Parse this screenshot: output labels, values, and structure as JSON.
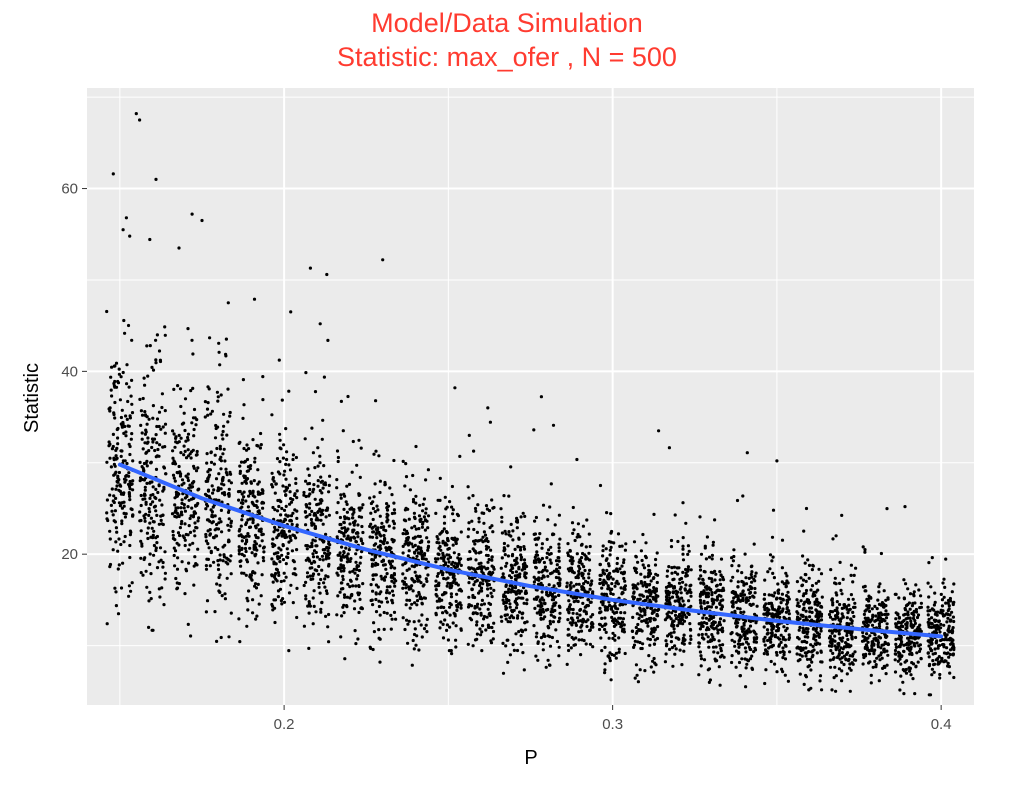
{
  "title_line1": "Model/Data Simulation",
  "title_line2": "Statistic: max_ofer , N = 500",
  "chart_data": {
    "type": "scatter",
    "xlabel": "P",
    "ylabel": "Statistic",
    "xlim": [
      0.14,
      0.41
    ],
    "ylim": [
      3.5,
      71
    ],
    "x_ticks": [
      0.2,
      0.3,
      0.4
    ],
    "x_tick_labels": [
      "0.2",
      "0.3",
      "0.4"
    ],
    "y_ticks": [
      20,
      40,
      60
    ],
    "y_tick_labels": [
      "20",
      "40",
      "60"
    ],
    "grid": true,
    "legend": "none",
    "colors": {
      "panel": "#ebebeb",
      "grid": "#ffffff",
      "points": "#000000",
      "smooth": "#3366ff",
      "title": "#ff3b30"
    },
    "p_values": [
      0.15,
      0.16,
      0.17,
      0.18,
      0.19,
      0.2,
      0.21,
      0.22,
      0.23,
      0.24,
      0.25,
      0.26,
      0.27,
      0.28,
      0.29,
      0.3,
      0.31,
      0.32,
      0.33,
      0.34,
      0.35,
      0.36,
      0.37,
      0.38,
      0.39,
      0.4
    ],
    "points_per_p": 200,
    "jitter_width": 0.004,
    "group_center": [
      29.5,
      27.8,
      26.3,
      24.9,
      23.6,
      22.5,
      21.4,
      20.4,
      19.5,
      18.7,
      17.9,
      17.2,
      16.6,
      16.0,
      15.4,
      14.9,
      14.4,
      13.9,
      13.5,
      13.1,
      12.7,
      12.3,
      11.9,
      11.6,
      11.3,
      11.0
    ],
    "outliers": [
      {
        "x": 0.155,
        "y": 68.2
      },
      {
        "x": 0.156,
        "y": 67.5
      },
      {
        "x": 0.148,
        "y": 61.6
      },
      {
        "x": 0.161,
        "y": 61.0
      },
      {
        "x": 0.172,
        "y": 57.2
      },
      {
        "x": 0.175,
        "y": 56.5
      },
      {
        "x": 0.152,
        "y": 56.8
      },
      {
        "x": 0.151,
        "y": 55.5
      },
      {
        "x": 0.153,
        "y": 54.8
      },
      {
        "x": 0.168,
        "y": 53.5
      },
      {
        "x": 0.208,
        "y": 51.3
      },
      {
        "x": 0.213,
        "y": 50.6
      },
      {
        "x": 0.23,
        "y": 52.2
      },
      {
        "x": 0.183,
        "y": 47.5
      },
      {
        "x": 0.191,
        "y": 47.9
      },
      {
        "x": 0.202,
        "y": 46.5
      },
      {
        "x": 0.211,
        "y": 45.2
      },
      {
        "x": 0.252,
        "y": 38.2
      },
      {
        "x": 0.262,
        "y": 36.0
      },
      {
        "x": 0.276,
        "y": 33.6
      },
      {
        "x": 0.282,
        "y": 34.1
      },
      {
        "x": 0.314,
        "y": 33.5
      },
      {
        "x": 0.35,
        "y": 30.2
      },
      {
        "x": 0.341,
        "y": 31.1
      },
      {
        "x": 0.389,
        "y": 25.2
      },
      {
        "x": 0.359,
        "y": 25.0
      }
    ],
    "smooth_line": {
      "x": [
        0.15,
        0.175,
        0.2,
        0.225,
        0.25,
        0.275,
        0.3,
        0.325,
        0.35,
        0.375,
        0.4
      ],
      "y": [
        29.8,
        26.1,
        23.1,
        20.5,
        18.3,
        16.5,
        15.0,
        13.8,
        12.7,
        11.8,
        11.0
      ]
    }
  }
}
